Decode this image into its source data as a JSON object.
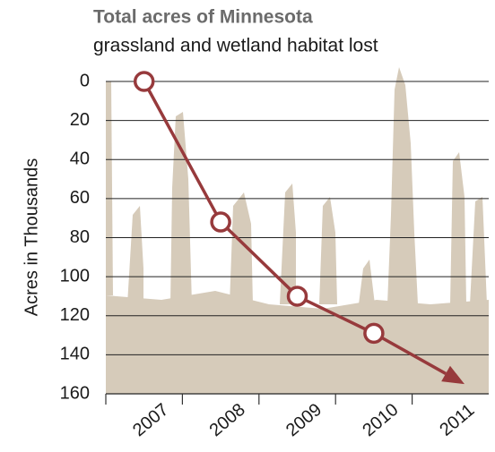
{
  "chart_data": {
    "type": "line",
    "title": "Total acres of Minnesota",
    "subtitle": "grassland and wetland habitat lost",
    "y_label": "Acres in Thousands",
    "categories": [
      "2007",
      "2008",
      "2009",
      "2010",
      "2011"
    ],
    "values": [
      0,
      72,
      110,
      129,
      151
    ],
    "color": "#973a3c",
    "ylim": [
      0,
      160
    ],
    "y_inverted": true,
    "yticks": [
      0,
      20,
      40,
      60,
      80,
      100,
      120,
      140,
      160
    ],
    "grid": true
  }
}
